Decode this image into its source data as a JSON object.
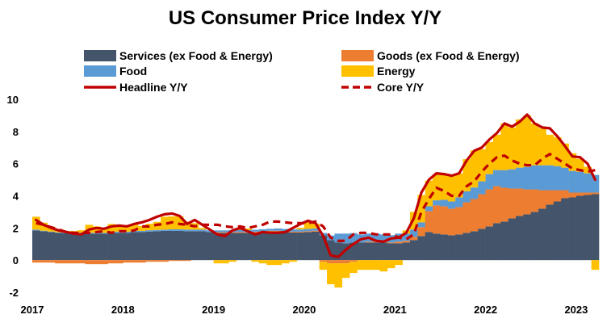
{
  "chart_data": {
    "type": "area",
    "title": "US Consumer Price Index Y/Y",
    "xlabel": "",
    "ylabel": "",
    "ylim": [
      -2,
      10
    ],
    "y_ticks": [
      -2,
      0,
      2,
      4,
      6,
      8,
      10
    ],
    "x_ticks": [
      "2017",
      "2018",
      "2019",
      "2020",
      "2021",
      "2022",
      "2023"
    ],
    "grid": false,
    "legend_position": "top",
    "months": [
      "2017-01",
      "2017-02",
      "2017-03",
      "2017-04",
      "2017-05",
      "2017-06",
      "2017-07",
      "2017-08",
      "2017-09",
      "2017-10",
      "2017-11",
      "2017-12",
      "2018-01",
      "2018-02",
      "2018-03",
      "2018-04",
      "2018-05",
      "2018-06",
      "2018-07",
      "2018-08",
      "2018-09",
      "2018-10",
      "2018-11",
      "2018-12",
      "2019-01",
      "2019-02",
      "2019-03",
      "2019-04",
      "2019-05",
      "2019-06",
      "2019-07",
      "2019-08",
      "2019-09",
      "2019-10",
      "2019-11",
      "2019-12",
      "2020-01",
      "2020-02",
      "2020-03",
      "2020-04",
      "2020-05",
      "2020-06",
      "2020-07",
      "2020-08",
      "2020-09",
      "2020-10",
      "2020-11",
      "2020-12",
      "2021-01",
      "2021-02",
      "2021-03",
      "2021-04",
      "2021-05",
      "2021-06",
      "2021-07",
      "2021-08",
      "2021-09",
      "2021-10",
      "2021-11",
      "2021-12",
      "2022-01",
      "2022-02",
      "2022-03",
      "2022-04",
      "2022-05",
      "2022-06",
      "2022-07",
      "2022-08",
      "2022-09",
      "2022-10",
      "2022-11",
      "2022-12",
      "2023-01",
      "2023-02",
      "2023-03"
    ],
    "stacked_series": [
      {
        "name": "Services (ex Food & Energy)",
        "color": "#44546A",
        "values": [
          1.85,
          1.8,
          1.75,
          1.7,
          1.68,
          1.68,
          1.68,
          1.65,
          1.65,
          1.65,
          1.7,
          1.7,
          1.7,
          1.75,
          1.75,
          1.78,
          1.8,
          1.82,
          1.82,
          1.82,
          1.8,
          1.8,
          1.8,
          1.75,
          1.7,
          1.7,
          1.7,
          1.7,
          1.7,
          1.72,
          1.75,
          1.78,
          1.78,
          1.75,
          1.72,
          1.72,
          1.75,
          1.78,
          1.55,
          1.25,
          1.1,
          1.05,
          1.1,
          1.1,
          1.1,
          1.1,
          1.1,
          1.05,
          1.05,
          1.1,
          1.25,
          1.5,
          1.75,
          1.65,
          1.6,
          1.55,
          1.6,
          1.7,
          1.8,
          1.95,
          2.1,
          2.3,
          2.4,
          2.6,
          2.75,
          2.85,
          3.0,
          3.2,
          3.45,
          3.65,
          3.85,
          3.9,
          4.0,
          4.05,
          4.1
        ]
      },
      {
        "name": "Goods (ex Food & Energy)",
        "color": "#ED7D31",
        "values": [
          -0.15,
          -0.15,
          -0.15,
          -0.2,
          -0.2,
          -0.2,
          -0.2,
          -0.25,
          -0.25,
          -0.25,
          -0.2,
          -0.2,
          -0.15,
          -0.15,
          -0.15,
          -0.1,
          -0.1,
          -0.1,
          -0.05,
          -0.05,
          -0.05,
          0.0,
          0.0,
          0.0,
          0.05,
          0.05,
          0.05,
          0.05,
          0.05,
          0.05,
          0.05,
          0.05,
          0.05,
          0.05,
          0.05,
          0.05,
          0.05,
          0.05,
          -0.1,
          -0.2,
          -0.2,
          -0.2,
          -0.1,
          0.0,
          0.05,
          0.05,
          0.05,
          0.05,
          0.1,
          0.1,
          0.2,
          0.55,
          1.3,
          1.75,
          1.75,
          1.65,
          1.7,
          1.9,
          2.0,
          2.15,
          2.3,
          2.3,
          2.1,
          1.85,
          1.7,
          1.55,
          1.4,
          1.15,
          0.9,
          0.7,
          0.5,
          0.3,
          0.2,
          0.15,
          0.1
        ]
      },
      {
        "name": "Food",
        "color": "#5B9BD5",
        "values": [
          0.05,
          0.03,
          0.03,
          0.03,
          0.03,
          0.03,
          0.03,
          0.05,
          0.05,
          0.05,
          0.05,
          0.07,
          0.07,
          0.07,
          0.07,
          0.08,
          0.08,
          0.08,
          0.1,
          0.1,
          0.1,
          0.1,
          0.1,
          0.1,
          0.1,
          0.1,
          0.12,
          0.12,
          0.12,
          0.12,
          0.12,
          0.12,
          0.14,
          0.14,
          0.14,
          0.14,
          0.14,
          0.14,
          0.14,
          0.28,
          0.55,
          0.6,
          0.58,
          0.5,
          0.5,
          0.5,
          0.45,
          0.45,
          0.5,
          0.45,
          0.45,
          0.3,
          0.3,
          0.32,
          0.4,
          0.45,
          0.6,
          0.68,
          0.72,
          0.8,
          0.95,
          1.0,
          1.1,
          1.2,
          1.3,
          1.4,
          1.5,
          1.55,
          1.55,
          1.5,
          1.4,
          1.35,
          1.3,
          1.2,
          1.1
        ]
      },
      {
        "name": "Energy",
        "color": "#FFC000",
        "values": [
          0.8,
          0.5,
          0.3,
          0.2,
          0.1,
          0.1,
          0.15,
          0.5,
          0.4,
          0.3,
          0.5,
          0.4,
          0.4,
          0.4,
          0.3,
          0.4,
          0.5,
          0.8,
          0.8,
          0.8,
          0.5,
          0.4,
          0.1,
          0.0,
          -0.2,
          -0.2,
          -0.1,
          0.1,
          0.1,
          -0.1,
          -0.2,
          -0.3,
          -0.3,
          -0.2,
          -0.1,
          0.1,
          0.5,
          0.3,
          -0.5,
          -1.3,
          -1.5,
          -0.9,
          -0.7,
          -0.6,
          -0.6,
          -0.6,
          -0.7,
          -0.5,
          -0.3,
          0.2,
          1.1,
          1.7,
          1.6,
          1.6,
          1.6,
          1.6,
          1.5,
          2.0,
          2.3,
          2.0,
          2.0,
          2.2,
          2.9,
          2.6,
          3.0,
          3.2,
          2.6,
          2.3,
          1.9,
          1.8,
          1.5,
          1.1,
          0.8,
          0.4,
          -0.6
        ]
      }
    ],
    "line_series": [
      {
        "name": "Headline Y/Y",
        "color": "#C00000",
        "style": "solid",
        "values": [
          2.5,
          2.2,
          2.0,
          1.85,
          1.75,
          1.65,
          1.6,
          1.9,
          2.0,
          1.95,
          2.1,
          2.15,
          2.1,
          2.25,
          2.35,
          2.5,
          2.7,
          2.85,
          2.9,
          2.75,
          2.25,
          2.5,
          2.2,
          1.9,
          1.6,
          1.5,
          1.85,
          2.0,
          1.8,
          1.6,
          1.75,
          1.7,
          1.7,
          1.75,
          2.0,
          2.25,
          2.45,
          2.3,
          1.5,
          0.3,
          0.2,
          0.65,
          1.0,
          1.3,
          1.4,
          1.2,
          1.15,
          1.35,
          1.4,
          1.7,
          2.6,
          4.2,
          5.0,
          5.4,
          5.35,
          5.25,
          5.4,
          6.2,
          6.8,
          7.0,
          7.5,
          7.9,
          8.5,
          8.3,
          8.6,
          9.05,
          8.5,
          8.25,
          8.2,
          7.7,
          7.1,
          6.45,
          6.4,
          6.0,
          5.0
        ]
      },
      {
        "name": "Core Y/Y",
        "color": "#C00000",
        "style": "dashed",
        "values": [
          2.3,
          2.2,
          2.05,
          1.9,
          1.75,
          1.7,
          1.7,
          1.7,
          1.75,
          1.8,
          1.7,
          1.8,
          1.8,
          1.85,
          2.1,
          2.1,
          2.2,
          2.25,
          2.35,
          2.25,
          2.2,
          2.1,
          2.2,
          2.2,
          2.2,
          2.1,
          2.05,
          2.1,
          2.0,
          2.1,
          2.2,
          2.4,
          2.4,
          2.35,
          2.3,
          2.3,
          2.3,
          2.4,
          2.1,
          1.4,
          1.2,
          1.2,
          1.6,
          1.7,
          1.7,
          1.6,
          1.6,
          1.6,
          1.4,
          1.3,
          1.6,
          3.0,
          3.8,
          4.5,
          4.3,
          4.0,
          4.0,
          4.6,
          4.9,
          5.5,
          6.0,
          6.4,
          6.5,
          6.2,
          6.0,
          5.9,
          5.9,
          6.3,
          6.6,
          6.3,
          6.0,
          5.7,
          5.6,
          5.5,
          5.6
        ]
      }
    ],
    "legend": [
      {
        "label": "Services (ex Food & Energy)",
        "kind": "rect",
        "color": "#44546A"
      },
      {
        "label": "Goods (ex Food & Energy)",
        "kind": "rect",
        "color": "#ED7D31"
      },
      {
        "label": "Food",
        "kind": "rect",
        "color": "#5B9BD5"
      },
      {
        "label": "Energy",
        "kind": "rect",
        "color": "#FFC000"
      },
      {
        "label": "Headline Y/Y",
        "kind": "line",
        "color": "#C00000"
      },
      {
        "label": "Core Y/Y",
        "kind": "dash",
        "color": "#C00000"
      }
    ]
  }
}
